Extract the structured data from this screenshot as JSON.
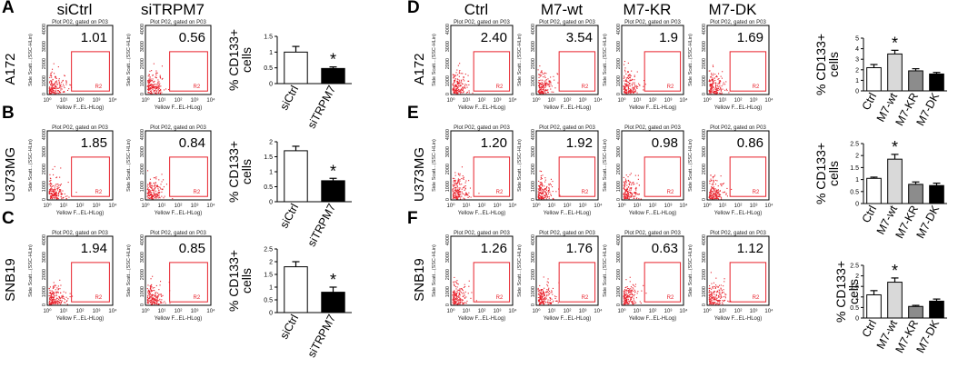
{
  "figure": {
    "left_conditions": [
      "siCtrl",
      "siTRPM7"
    ],
    "right_conditions": [
      "Ctrl",
      "M7-wt",
      "M7-KR",
      "M7-DK"
    ],
    "plot_header": "Plot P02,  gated on P03",
    "y_axis_label": "Side Scatt...(SSC-HLin)",
    "x_axis_label": "Yellow F...EL-HLog)",
    "gate_label": "R2",
    "y_ticks": [
      "0",
      "1000",
      "2000",
      "3000",
      "4000"
    ],
    "x_ticks": [
      "10⁰",
      "10¹",
      "10²",
      "10³",
      "10⁴"
    ],
    "bar_ylabel_main": "% CD133+",
    "bar_ylabel_sub": "cells",
    "significance_mark": "*",
    "colors": {
      "gate": "#e8212b",
      "dots": "#e8212b",
      "bar_black": "#000000",
      "bar_grey": "#8c8c8c",
      "bar_light": "#d9d9d9",
      "bar_white": "#ffffff"
    }
  },
  "panels": [
    {
      "letter": "A",
      "cell_line": "A172",
      "flow_values": [
        "1.01",
        "0.56"
      ]
    },
    {
      "letter": "B",
      "cell_line": "U373MG",
      "flow_values": [
        "1.85",
        "0.84"
      ]
    },
    {
      "letter": "C",
      "cell_line": "SNB19",
      "flow_values": [
        "1.94",
        "0.85"
      ]
    },
    {
      "letter": "D",
      "cell_line": "A172",
      "flow_values": [
        "2.40",
        "3.54",
        "1.9",
        "1.69"
      ]
    },
    {
      "letter": "E",
      "cell_line": "U373MG",
      "flow_values": [
        "1.20",
        "1.92",
        "0.98",
        "0.86"
      ]
    },
    {
      "letter": "F",
      "cell_line": "SNB19",
      "flow_values": [
        "1.26",
        "1.76",
        "0.63",
        "1.12"
      ]
    }
  ],
  "chart_data": [
    {
      "type": "bar",
      "panel": "A",
      "categories": [
        "siCtrl",
        "siTRPM7"
      ],
      "values": [
        1.0,
        0.48
      ],
      "errors": [
        0.18,
        0.05
      ],
      "significant": [
        false,
        true
      ],
      "ylim": [
        0,
        1.5
      ],
      "yticks": [
        "0",
        "0.5",
        "1",
        "1.5"
      ],
      "ylabel": "% CD133+ cells"
    },
    {
      "type": "bar",
      "panel": "B",
      "categories": [
        "siCtrl",
        "siTRPM7"
      ],
      "values": [
        1.7,
        0.7
      ],
      "errors": [
        0.15,
        0.08
      ],
      "significant": [
        false,
        true
      ],
      "ylim": [
        0,
        2
      ],
      "yticks": [
        "0",
        "0.5",
        "1",
        "1.5",
        "2"
      ],
      "ylabel": "% CD133+ cells"
    },
    {
      "type": "bar",
      "panel": "C",
      "categories": [
        "siCtrl",
        "siTRPM7"
      ],
      "values": [
        1.8,
        0.8
      ],
      "errors": [
        0.2,
        0.2
      ],
      "significant": [
        false,
        true
      ],
      "ylim": [
        0,
        2.5
      ],
      "yticks": [
        "0",
        "0.5",
        "1",
        "1.5",
        "2",
        "2.5"
      ],
      "ylabel": "% CD133+ cells"
    },
    {
      "type": "bar",
      "panel": "D",
      "categories": [
        "Ctrl",
        "M7-wt",
        "M7-KR",
        "M7-DK"
      ],
      "values": [
        2.2,
        3.5,
        1.9,
        1.6
      ],
      "errors": [
        0.3,
        0.35,
        0.2,
        0.15
      ],
      "significant": [
        false,
        true,
        false,
        false
      ],
      "ylim": [
        0,
        5
      ],
      "yticks": [
        "0",
        "1",
        "2",
        "3",
        "4",
        "5"
      ],
      "ylabel": "% CD133+ cells"
    },
    {
      "type": "bar",
      "panel": "E",
      "categories": [
        "Ctrl",
        "M7-wt",
        "M7-KR",
        "M7-DK"
      ],
      "values": [
        1.05,
        1.85,
        0.8,
        0.75
      ],
      "errors": [
        0.05,
        0.2,
        0.1,
        0.1
      ],
      "significant": [
        false,
        true,
        false,
        false
      ],
      "ylim": [
        0,
        2.5
      ],
      "yticks": [
        "0",
        "0.5",
        "1",
        "1.5",
        "2",
        "2.5"
      ],
      "ylabel": "% CD133+ cells"
    },
    {
      "type": "bar",
      "panel": "F",
      "categories": [
        "Ctrl",
        "M7-wt",
        "M7-KR",
        "M7-DK"
      ],
      "values": [
        1.1,
        1.7,
        0.55,
        0.8
      ],
      "errors": [
        0.2,
        0.2,
        0.05,
        0.1
      ],
      "significant": [
        false,
        true,
        false,
        false
      ],
      "ylim": [
        0,
        2.5
      ],
      "yticks": [
        "0",
        "0.5",
        "1",
        "1.5",
        "2",
        "2.5"
      ],
      "ylabel": "% CD133+ cells"
    }
  ]
}
